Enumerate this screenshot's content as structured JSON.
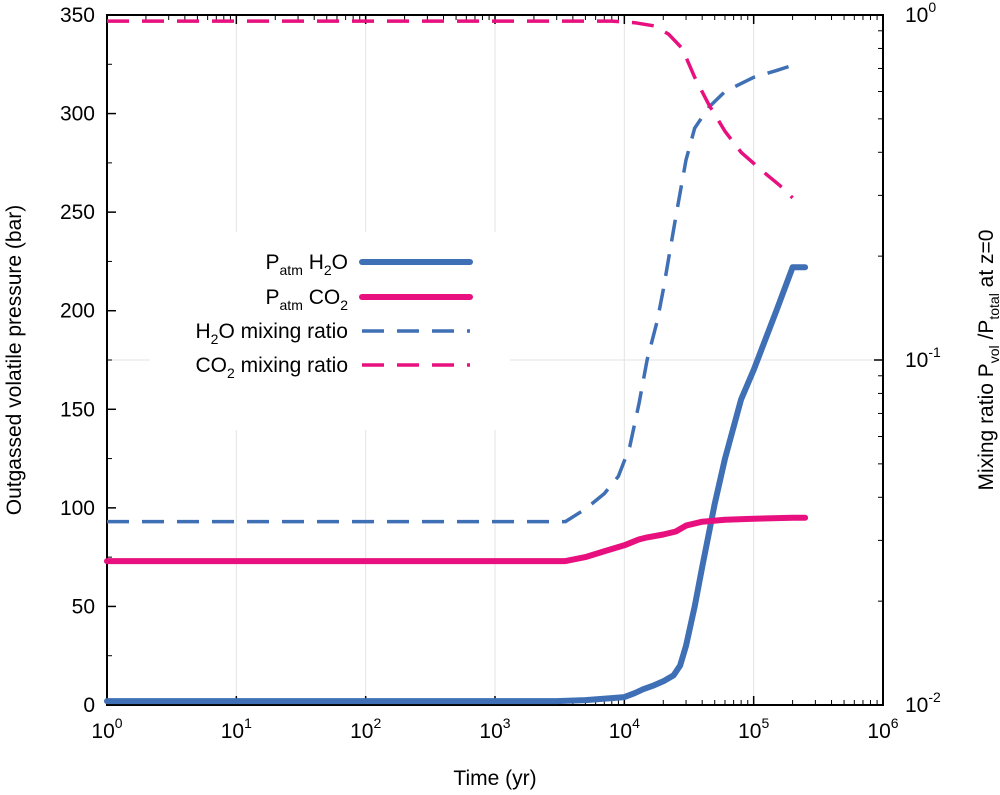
{
  "chart_data": {
    "type": "line",
    "xlabel": "Time (yr)",
    "ylabel_left": "Outgassed volatile pressure (bar)",
    "ylabel_right": {
      "prefix": "Mixing ratio P",
      "sub1": "vol",
      "mid": " /P",
      "sub2": "total",
      "suffix": " at z=0"
    },
    "x_scale": "log",
    "xlim": [
      1,
      1000000
    ],
    "x_ticks": [
      {
        "value": 1,
        "base": "10",
        "exp": "0"
      },
      {
        "value": 10,
        "base": "10",
        "exp": "1"
      },
      {
        "value": 100,
        "base": "10",
        "exp": "2"
      },
      {
        "value": 1000,
        "base": "10",
        "exp": "3"
      },
      {
        "value": 10000,
        "base": "10",
        "exp": "4"
      },
      {
        "value": 100000,
        "base": "10",
        "exp": "5"
      },
      {
        "value": 1000000,
        "base": "10",
        "exp": "6"
      }
    ],
    "y_left_lim": [
      0,
      350
    ],
    "y_left_ticks": [
      0,
      50,
      100,
      150,
      200,
      250,
      300,
      350
    ],
    "y_right_scale": "log",
    "y_right_lim": [
      0.01,
      1
    ],
    "y_right_ticks": [
      {
        "value": 0.01,
        "base": "10",
        "exp": "-2"
      },
      {
        "value": 0.1,
        "base": "10",
        "exp": "-1"
      },
      {
        "value": 1,
        "base": "10",
        "exp": "0"
      }
    ],
    "grid": true,
    "legend_position": "center-left",
    "colors": {
      "h2o": "#3f6fb5",
      "co2": "#e8107e"
    },
    "series": [
      {
        "name": "Patm H2O",
        "legend": {
          "main": "P",
          "sub": "atm",
          "rest": " H",
          "sub2": "2",
          "rest2": "O"
        },
        "axis": "left",
        "style": "solid",
        "color": "#3f6fb5",
        "points": [
          [
            1,
            2
          ],
          [
            3000,
            2
          ],
          [
            5000,
            2.5
          ],
          [
            8000,
            3.5
          ],
          [
            10000,
            4
          ],
          [
            12000,
            6
          ],
          [
            14000,
            8
          ],
          [
            17000,
            10
          ],
          [
            20000,
            12
          ],
          [
            24000,
            15
          ],
          [
            27000,
            20
          ],
          [
            30000,
            30
          ],
          [
            35000,
            50
          ],
          [
            40000,
            70
          ],
          [
            50000,
            102
          ],
          [
            60000,
            125
          ],
          [
            80000,
            155
          ],
          [
            100000,
            170
          ],
          [
            150000,
            200
          ],
          [
            200000,
            222
          ],
          [
            250000,
            222
          ]
        ]
      },
      {
        "name": "Patm CO2",
        "legend": {
          "main": "P",
          "sub": "atm",
          "rest": " CO",
          "sub2": "2",
          "rest2": ""
        },
        "axis": "left",
        "style": "solid",
        "color": "#e8107e",
        "points": [
          [
            1,
            73
          ],
          [
            3500,
            73
          ],
          [
            5000,
            75
          ],
          [
            7000,
            78
          ],
          [
            10000,
            81
          ],
          [
            13000,
            84
          ],
          [
            15000,
            85
          ],
          [
            20000,
            86.5
          ],
          [
            25000,
            88
          ],
          [
            30000,
            91
          ],
          [
            40000,
            93
          ],
          [
            60000,
            94
          ],
          [
            100000,
            94.5
          ],
          [
            200000,
            95
          ],
          [
            250000,
            95
          ]
        ]
      },
      {
        "name": "H2O mixing ratio",
        "legend": {
          "main": "H",
          "sub": "2",
          "rest": "O mixing ratio",
          "sub2": "",
          "rest2": ""
        },
        "axis": "right",
        "style": "dashed",
        "color": "#3f6fb5",
        "points": [
          [
            1,
            0.034
          ],
          [
            3500,
            0.034
          ],
          [
            5000,
            0.037
          ],
          [
            7000,
            0.041
          ],
          [
            9000,
            0.046
          ],
          [
            11000,
            0.056
          ],
          [
            13000,
            0.075
          ],
          [
            15000,
            0.1
          ],
          [
            18000,
            0.13
          ],
          [
            20000,
            0.16
          ],
          [
            25000,
            0.26
          ],
          [
            30000,
            0.38
          ],
          [
            35000,
            0.47
          ],
          [
            45000,
            0.54
          ],
          [
            60000,
            0.6
          ],
          [
            100000,
            0.66
          ],
          [
            150000,
            0.69
          ],
          [
            200000,
            0.715
          ]
        ]
      },
      {
        "name": "CO2 mixing ratio",
        "legend": {
          "main": "CO",
          "sub": "2",
          "rest": " mixing ratio",
          "sub2": "",
          "rest2": ""
        },
        "axis": "right",
        "style": "dashed",
        "color": "#e8107e",
        "points": [
          [
            1,
            0.96
          ],
          [
            5000,
            0.96
          ],
          [
            8000,
            0.96
          ],
          [
            12000,
            0.95
          ],
          [
            17000,
            0.93
          ],
          [
            22000,
            0.88
          ],
          [
            28000,
            0.8
          ],
          [
            35000,
            0.66
          ],
          [
            45000,
            0.55
          ],
          [
            60000,
            0.46
          ],
          [
            80000,
            0.4
          ],
          [
            120000,
            0.35
          ],
          [
            160000,
            0.32
          ],
          [
            200000,
            0.295
          ]
        ]
      }
    ]
  }
}
